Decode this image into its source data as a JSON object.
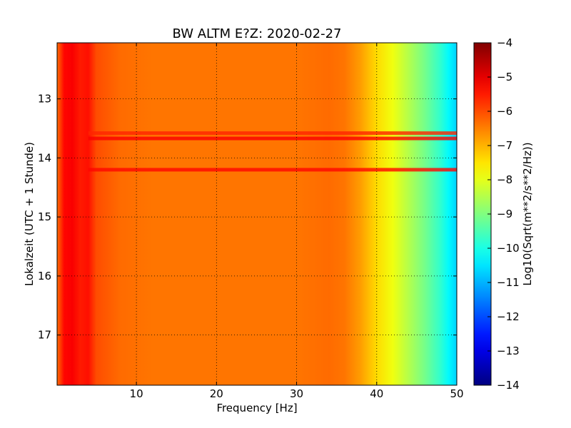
{
  "chart_data": {
    "type": "heatmap",
    "title": "BW ALTM E?Z: 2020-02-27",
    "xlabel": "Frequency [Hz]",
    "ylabel": "Lokalzeit (UTC + 1 Stunde)",
    "xlim": [
      0.1,
      50
    ],
    "ylim": [
      12.05,
      17.85
    ],
    "y_inverted": true,
    "x_ticks": [
      10,
      20,
      30,
      40,
      50
    ],
    "y_ticks": [
      13,
      14,
      15,
      16,
      17
    ],
    "grid": true,
    "colormap": "jet",
    "colorbar": {
      "label": "Log10(Sqrt(m**2/s**2/Hz))",
      "range": [
        -14,
        -4
      ],
      "ticks": [
        -4,
        -5,
        -6,
        -7,
        -8,
        -9,
        -10,
        -11,
        -12,
        -13,
        -14
      ]
    },
    "frequency_profile": {
      "frequency_hz": [
        0.1,
        1,
        2,
        3,
        4,
        5,
        8,
        12,
        20,
        30,
        34,
        36,
        38,
        40,
        42,
        44,
        46,
        48,
        49,
        50
      ],
      "log_amplitude": [
        -6.3,
        -5.3,
        -5.2,
        -5.5,
        -5.4,
        -6.0,
        -6.3,
        -6.4,
        -6.4,
        -6.4,
        -6.3,
        -6.4,
        -6.8,
        -7.4,
        -7.9,
        -8.5,
        -9.1,
        -9.8,
        -10.3,
        -10.7
      ]
    },
    "bands": [
      {
        "time_h": 13.58,
        "log_amplitude": -5.6
      },
      {
        "time_h": 13.67,
        "log_amplitude": -5.2
      },
      {
        "time_h": 14.2,
        "log_amplitude": -5.3
      }
    ]
  }
}
